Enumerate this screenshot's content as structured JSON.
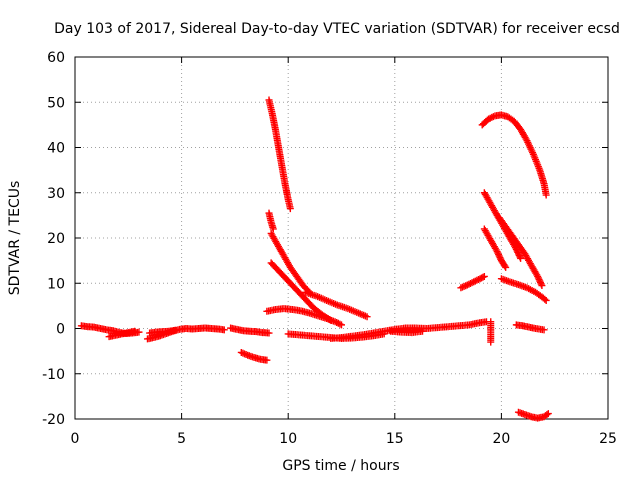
{
  "chart_data": {
    "type": "scatter",
    "title": "Day 103 of 2017, Sidereal Day-to-day VTEC variation (SDTVAR) for receiver ecsd",
    "xlabel": "GPS time / hours",
    "ylabel": "SDTVAR / TECUs",
    "xlim": [
      0,
      25
    ],
    "ylim": [
      -20,
      60
    ],
    "xticks": [
      "0",
      "5",
      "10",
      "15",
      "20",
      "25"
    ],
    "yticks": [
      "-20",
      "-10",
      "0",
      "10",
      "20",
      "30",
      "40",
      "50",
      "60"
    ],
    "grid": true,
    "marker": "plus",
    "color": "#ff0000",
    "series": [
      {
        "points": [
          [
            0.3,
            0.6
          ],
          [
            0.6,
            0.4
          ],
          [
            0.9,
            0.3
          ],
          [
            1.2,
            0.0
          ],
          [
            1.5,
            -0.3
          ],
          [
            1.8,
            -0.5
          ],
          [
            2.1,
            -0.9
          ],
          [
            2.4,
            -1.1
          ],
          [
            2.7,
            -1.0
          ],
          [
            3.0,
            -0.8
          ]
        ]
      },
      {
        "points": [
          [
            1.6,
            -1.8
          ],
          [
            1.9,
            -1.5
          ],
          [
            2.2,
            -1.2
          ],
          [
            2.5,
            -0.9
          ],
          [
            2.8,
            -0.6
          ]
        ]
      },
      {
        "points": [
          [
            3.4,
            -2.3
          ],
          [
            3.7,
            -2.0
          ],
          [
            4.0,
            -1.6
          ],
          [
            4.3,
            -1.1
          ],
          [
            4.6,
            -0.6
          ],
          [
            4.9,
            -0.2
          ],
          [
            5.2,
            0.0
          ],
          [
            5.5,
            -0.1
          ],
          [
            5.8,
            0.0
          ],
          [
            6.1,
            0.1
          ],
          [
            6.4,
            0.0
          ],
          [
            6.7,
            -0.1
          ],
          [
            7.0,
            -0.3
          ]
        ]
      },
      {
        "points": [
          [
            3.5,
            -1.0
          ],
          [
            3.8,
            -0.8
          ],
          [
            4.1,
            -0.7
          ],
          [
            4.4,
            -0.6
          ],
          [
            4.7,
            -0.4
          ]
        ]
      },
      {
        "points": [
          [
            7.3,
            0.1
          ],
          [
            7.6,
            -0.2
          ],
          [
            7.9,
            -0.5
          ],
          [
            8.2,
            -0.6
          ],
          [
            8.5,
            -0.7
          ],
          [
            8.8,
            -0.9
          ],
          [
            9.1,
            -1.0
          ]
        ]
      },
      {
        "points": [
          [
            7.8,
            -5.3
          ],
          [
            8.1,
            -5.9
          ],
          [
            8.4,
            -6.4
          ],
          [
            8.7,
            -6.8
          ],
          [
            9.0,
            -7.0
          ]
        ]
      },
      {
        "points": [
          [
            9.1,
            50.5
          ],
          [
            9.25,
            47.5
          ],
          [
            9.4,
            44.0
          ],
          [
            9.55,
            40.0
          ],
          [
            9.7,
            36.0
          ],
          [
            9.85,
            32.0
          ],
          [
            10.0,
            28.5
          ],
          [
            10.1,
            26.5
          ]
        ]
      },
      {
        "points": [
          [
            9.1,
            25.5
          ],
          [
            9.2,
            23.5
          ],
          [
            9.3,
            22.0
          ]
        ]
      },
      {
        "points": [
          [
            9.2,
            21.0
          ],
          [
            9.5,
            18.5
          ],
          [
            9.8,
            16.0
          ],
          [
            10.1,
            13.5
          ],
          [
            10.4,
            11.5
          ],
          [
            10.7,
            9.5
          ],
          [
            11.0,
            8.0
          ]
        ]
      },
      {
        "points": [
          [
            9.2,
            14.5
          ],
          [
            9.6,
            12.5
          ],
          [
            10.0,
            10.5
          ],
          [
            10.4,
            8.5
          ],
          [
            10.8,
            6.5
          ],
          [
            11.2,
            4.5
          ],
          [
            11.6,
            3.0
          ],
          [
            12.0,
            1.8
          ]
        ]
      },
      {
        "points": [
          [
            10.8,
            8.0
          ],
          [
            11.3,
            7.2
          ],
          [
            11.8,
            6.2
          ],
          [
            12.3,
            5.2
          ],
          [
            12.8,
            4.4
          ],
          [
            13.3,
            3.4
          ],
          [
            13.7,
            2.6
          ]
        ]
      },
      {
        "points": [
          [
            9.0,
            3.8
          ],
          [
            9.4,
            4.2
          ],
          [
            9.8,
            4.4
          ],
          [
            10.2,
            4.2
          ],
          [
            10.6,
            3.9
          ],
          [
            11.0,
            3.4
          ],
          [
            11.4,
            2.8
          ],
          [
            11.8,
            2.2
          ],
          [
            12.2,
            1.5
          ],
          [
            12.5,
            0.8
          ]
        ]
      },
      {
        "points": [
          [
            10.0,
            -1.2
          ],
          [
            10.5,
            -1.4
          ],
          [
            11.0,
            -1.6
          ],
          [
            11.5,
            -1.8
          ],
          [
            12.0,
            -2.0
          ],
          [
            12.5,
            -2.2
          ],
          [
            13.0,
            -2.1
          ],
          [
            13.5,
            -1.9
          ],
          [
            14.0,
            -1.6
          ],
          [
            14.5,
            -1.2
          ]
        ]
      },
      {
        "points": [
          [
            12.0,
            -2.2
          ],
          [
            12.5,
            -2.0
          ],
          [
            13.0,
            -1.7
          ],
          [
            13.5,
            -1.4
          ],
          [
            14.0,
            -1.0
          ],
          [
            14.5,
            -0.6
          ],
          [
            15.0,
            -0.2
          ],
          [
            15.5,
            0.1
          ],
          [
            16.0,
            0.1
          ],
          [
            16.5,
            0.0
          ],
          [
            17.0,
            0.2
          ],
          [
            17.5,
            0.4
          ],
          [
            18.0,
            0.6
          ],
          [
            18.5,
            0.8
          ],
          [
            18.9,
            1.2
          ],
          [
            19.3,
            1.5
          ]
        ]
      },
      {
        "points": [
          [
            14.8,
            -0.6
          ],
          [
            15.3,
            -0.8
          ],
          [
            15.8,
            -0.9
          ],
          [
            16.3,
            -0.6
          ]
        ]
      },
      {
        "points": [
          [
            18.1,
            9.0
          ],
          [
            18.4,
            9.6
          ],
          [
            18.7,
            10.3
          ],
          [
            19.0,
            11.0
          ],
          [
            19.2,
            11.5
          ]
        ]
      },
      {
        "points": [
          [
            19.5,
            1.5
          ],
          [
            19.5,
            -3.0
          ]
        ]
      },
      {
        "points": [
          [
            19.1,
            45.0
          ],
          [
            19.4,
            46.3
          ],
          [
            19.7,
            47.0
          ],
          [
            20.0,
            47.2
          ],
          [
            20.3,
            46.8
          ],
          [
            20.6,
            45.8
          ],
          [
            20.9,
            44.0
          ],
          [
            21.2,
            41.5
          ],
          [
            21.5,
            38.5
          ],
          [
            21.8,
            35.0
          ],
          [
            22.0,
            32.0
          ],
          [
            22.1,
            29.5
          ]
        ]
      },
      {
        "points": [
          [
            19.2,
            30.0
          ],
          [
            19.5,
            27.5
          ],
          [
            19.8,
            25.0
          ],
          [
            20.1,
            22.5
          ],
          [
            20.4,
            20.0
          ],
          [
            20.7,
            17.5
          ],
          [
            20.9,
            15.5
          ]
        ]
      },
      {
        "points": [
          [
            19.9,
            24.5
          ],
          [
            20.2,
            22.5
          ],
          [
            20.5,
            20.5
          ],
          [
            20.8,
            18.5
          ],
          [
            21.1,
            16.5
          ],
          [
            21.4,
            14.0
          ],
          [
            21.7,
            11.5
          ],
          [
            21.9,
            9.5
          ]
        ]
      },
      {
        "points": [
          [
            19.2,
            22.0
          ],
          [
            19.5,
            19.5
          ],
          [
            19.8,
            17.0
          ],
          [
            20.0,
            15.0
          ],
          [
            20.2,
            13.5
          ]
        ]
      },
      {
        "points": [
          [
            20.0,
            11.0
          ],
          [
            20.4,
            10.3
          ],
          [
            20.8,
            9.7
          ],
          [
            21.2,
            9.0
          ],
          [
            21.6,
            8.0
          ],
          [
            21.9,
            7.0
          ],
          [
            22.1,
            6.2
          ]
        ]
      },
      {
        "points": [
          [
            20.7,
            0.8
          ],
          [
            21.0,
            0.6
          ],
          [
            21.3,
            0.3
          ],
          [
            21.6,
            0.0
          ],
          [
            22.0,
            -0.3
          ]
        ]
      },
      {
        "points": [
          [
            20.8,
            -18.5
          ],
          [
            21.1,
            -19.0
          ],
          [
            21.4,
            -19.5
          ],
          [
            21.7,
            -19.8
          ],
          [
            22.0,
            -19.5
          ],
          [
            22.2,
            -18.8
          ]
        ]
      }
    ]
  }
}
